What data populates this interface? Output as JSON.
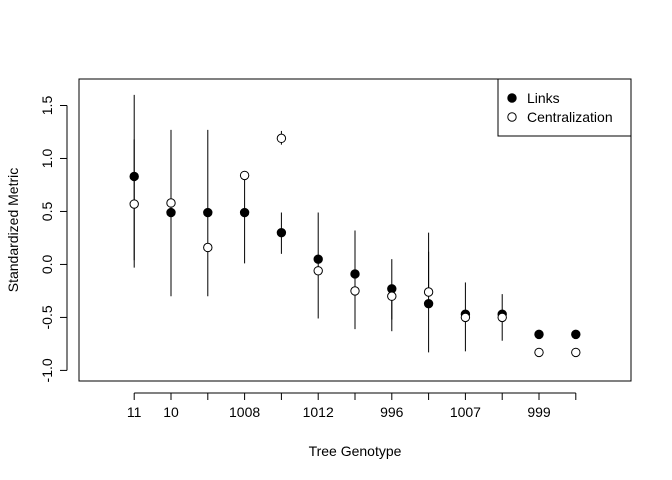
{
  "chart_data": {
    "type": "scatter",
    "title": "",
    "xlabel": "Tree Genotype",
    "ylabel": "Standardized Metric",
    "ylim": [
      -1.1,
      1.75
    ],
    "y_ticks": [
      -1.0,
      -0.5,
      0.0,
      0.5,
      1.0,
      1.5
    ],
    "y_tick_labels": [
      "-1.0",
      "-0.5",
      "0.0",
      "0.5",
      "1.0",
      "1.5"
    ],
    "x_positions": [
      1,
      2,
      3,
      4,
      5,
      6,
      7,
      8,
      9,
      10,
      11,
      12,
      13
    ],
    "xlim": [
      -0.5,
      14.5
    ],
    "x_tick_labels": [
      "11",
      "10",
      "",
      "1008",
      "",
      "1012",
      "",
      "996",
      "",
      "1007",
      "",
      "999",
      ""
    ],
    "legend_position": "top-right",
    "grid": false,
    "series": [
      {
        "name": "Links",
        "marker": "filled-circle",
        "values": [
          0.83,
          0.49,
          0.49,
          0.49,
          0.3,
          0.05,
          -0.09,
          -0.23,
          -0.37,
          -0.47,
          -0.47,
          -0.66,
          -0.66
        ],
        "err_low": [
          0.04,
          -0.3,
          -0.3,
          0.01,
          0.1,
          -0.51,
          -0.51,
          -0.52,
          -0.83,
          -0.82,
          -0.72,
          null,
          null
        ],
        "err_high": [
          1.18,
          1.27,
          1.27,
          0.87,
          0.49,
          0.49,
          0.32,
          0.05,
          0.12,
          -0.17,
          -0.28,
          null,
          null
        ]
      },
      {
        "name": "Centralization",
        "marker": "open-circle",
        "values": [
          0.57,
          0.58,
          0.16,
          0.84,
          1.19,
          -0.06,
          -0.25,
          -0.3,
          -0.26,
          -0.5,
          -0.5,
          -0.83,
          -0.83
        ],
        "err_low": [
          -0.03,
          null,
          null,
          null,
          1.13,
          null,
          -0.61,
          -0.63,
          null,
          null,
          null,
          null,
          null
        ],
        "err_high": [
          1.6,
          null,
          null,
          null,
          1.26,
          null,
          null,
          null,
          0.3,
          null,
          null,
          null,
          null
        ]
      }
    ]
  }
}
